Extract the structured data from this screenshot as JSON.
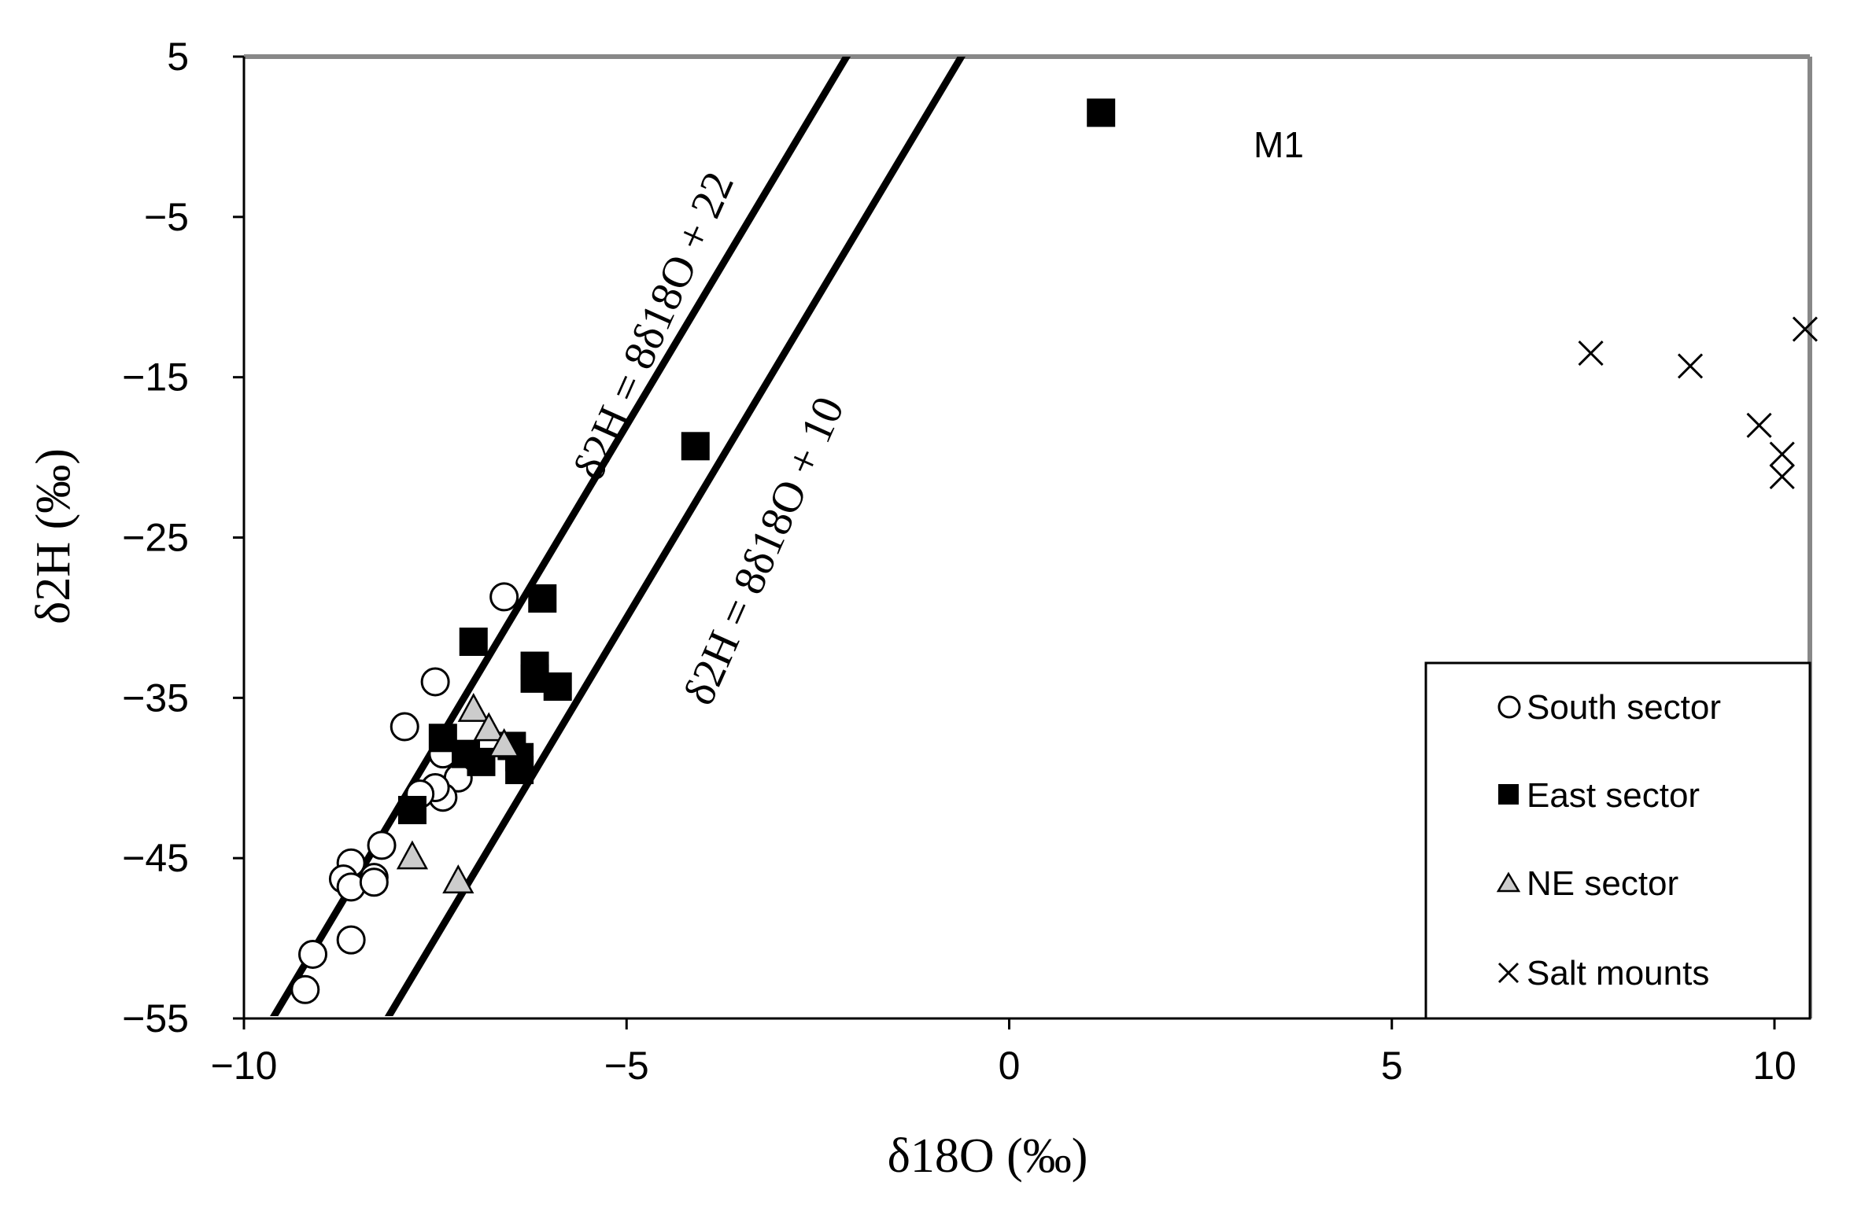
{
  "chart_data": {
    "type": "scatter",
    "title": "",
    "xlabel": "δ18O (‰)",
    "ylabel": "δ2H (‰)",
    "xlim": [
      -10,
      11
    ],
    "ylim": [
      -55,
      5
    ],
    "xticks": [
      "−10",
      "−5",
      "0",
      "5",
      "10"
    ],
    "xtick_values": [
      -10,
      -5,
      0,
      5,
      10
    ],
    "yticks": [
      "5",
      "−5",
      "−15",
      "−25",
      "−35",
      "−45",
      "−55"
    ],
    "ytick_values": [
      5,
      -5,
      -15,
      -25,
      -35,
      -45,
      -55
    ],
    "grid": false,
    "legend_position": "bottom-right",
    "series": [
      {
        "name": "South sector",
        "marker": "open-circle",
        "x": [
          -6.6,
          -7.5,
          -7.9,
          -7.4,
          -7.2,
          -7.4,
          -7.5,
          -7.7,
          -8.2,
          -8.3,
          -8.6,
          -8.7,
          -8.6,
          -8.3,
          -8.6,
          -9.1,
          -9.2
        ],
        "y": [
          -28.7,
          -34.0,
          -36.8,
          -38.5,
          -40.0,
          -41.2,
          -40.6,
          -41.0,
          -44.2,
          -46.2,
          -45.3,
          -46.3,
          -46.8,
          -46.5,
          -50.1,
          -51.0,
          -53.2
        ]
      },
      {
        "name": "East sector",
        "marker": "filled-square",
        "x": [
          1.2,
          -4.1,
          -6.1,
          -7.0,
          -6.2,
          -6.2,
          -5.9,
          -7.4,
          -7.1,
          -6.9,
          -6.5,
          -6.4,
          -6.4,
          -7.8
        ],
        "y": [
          1.5,
          -19.3,
          -28.8,
          -31.5,
          -33.0,
          -33.8,
          -34.3,
          -37.5,
          -38.5,
          -39.0,
          -38.0,
          -38.7,
          -39.5,
          -42.0
        ]
      },
      {
        "name": "NE sector",
        "marker": "gray-triangle",
        "x": [
          -7.0,
          -6.8,
          -6.6,
          -7.8,
          -7.2
        ],
        "y": [
          -35.8,
          -37.0,
          -38.0,
          -45.0,
          -46.5
        ]
      },
      {
        "name": "Salt mounts",
        "marker": "cross",
        "x": [
          7.6,
          8.9,
          10.4,
          9.8,
          10.1,
          10.1
        ],
        "y": [
          -13.5,
          -14.3,
          -12.0,
          -18.0,
          -19.8,
          -21.2
        ]
      }
    ],
    "lines": [
      {
        "label": "δ2H = 8δ18O + 22",
        "slope": 8,
        "intercept": 22
      },
      {
        "label": "δ2H = 8δ18O + 10",
        "slope": 8,
        "intercept": 10
      }
    ],
    "annotations": [
      {
        "text": "M1"
      }
    ],
    "colors": {
      "frame": "#888888",
      "axis": "#000000",
      "square_fill": "#000000",
      "triangle_fill": "#cccccc",
      "circle_fill": "#ffffff"
    }
  }
}
